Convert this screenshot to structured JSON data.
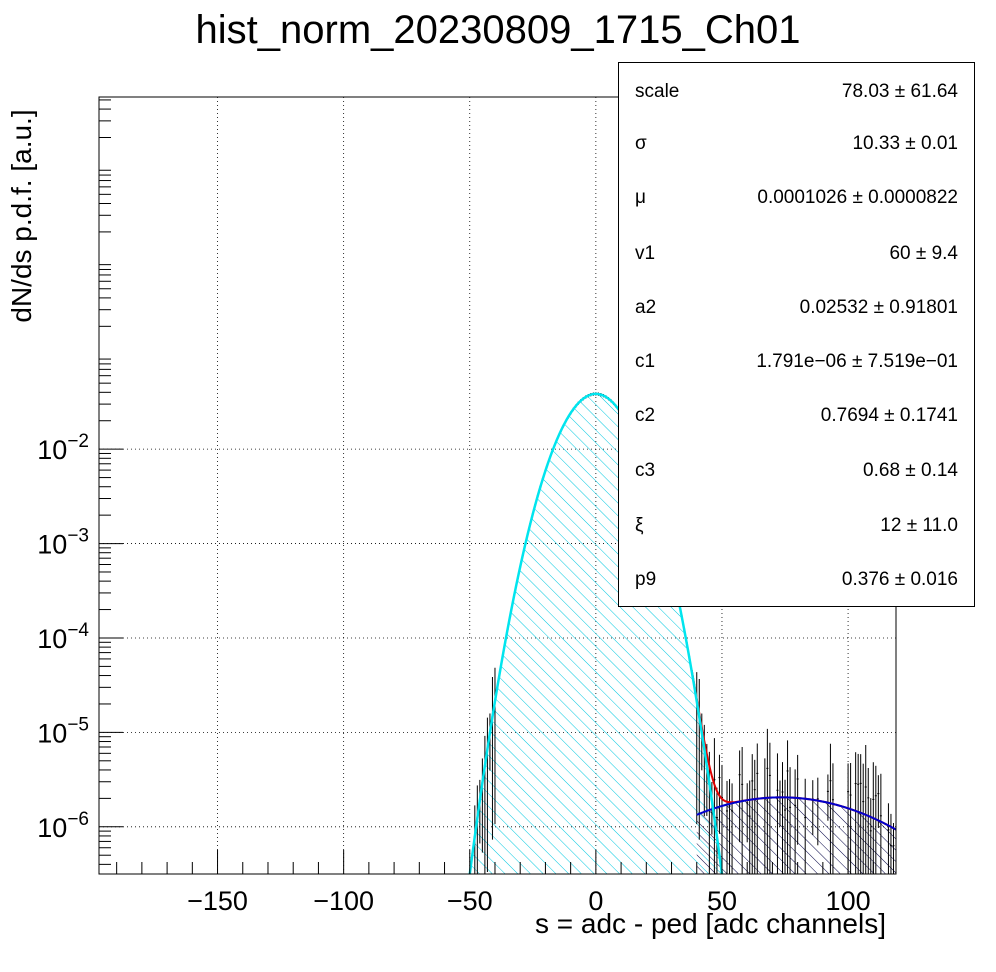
{
  "chart_data": {
    "type": "histogram-fit",
    "title": "hist_norm_20230809_1715_Ch01",
    "xlabel": "s = adc - ped [adc channels]",
    "ylabel": "dN/ds p.d.f. [a.u.]",
    "xlim": [
      -197,
      119
    ],
    "ylim_log10": [
      -6.5,
      1.73
    ],
    "y_scale": "log",
    "grid": true,
    "x_ticks": [
      {
        "value": -150,
        "label": "−150"
      },
      {
        "value": -100,
        "label": "−100"
      },
      {
        "value": -50,
        "label": "−50"
      },
      {
        "value": 0,
        "label": "0"
      },
      {
        "value": 50,
        "label": "50"
      },
      {
        "value": 100,
        "label": "100"
      }
    ],
    "y_ticks": [
      {
        "exp": -2,
        "base": "10",
        "sup": "−2"
      },
      {
        "exp": -3,
        "base": "10",
        "sup": "−3"
      },
      {
        "exp": -4,
        "base": "10",
        "sup": "−4"
      },
      {
        "exp": -5,
        "base": "10",
        "sup": "−5"
      },
      {
        "exp": -6,
        "base": "10",
        "sup": "−6"
      }
    ],
    "pedestal_peak": {
      "mean": 0.0001026,
      "sigma": 10.33,
      "peak_value": 0.0385,
      "color": "#00e5ee"
    },
    "signal_curve": {
      "center": 73.5,
      "peak_value": 2.05e-06,
      "color": "#0000cc"
    },
    "total_fit_color": "#e00000",
    "data_color": "#000000",
    "stats": [
      {
        "name": "scale",
        "value": "78.03 ± 61.64"
      },
      {
        "name": "σ",
        "value": "10.33 ± 0.01"
      },
      {
        "name": "μ",
        "value": "0.0001026 ± 0.0000822"
      },
      {
        "name": "v1",
        "value": "60 ± 9.4"
      },
      {
        "name": "a2",
        "value": "0.02532 ± 0.91801"
      },
      {
        "name": "c1",
        "value": "1.791e−06 ± 7.519e−01"
      },
      {
        "name": "c2",
        "value": "0.7694 ± 0.1741"
      },
      {
        "name": "c3",
        "value": "0.68 ± 0.14"
      },
      {
        "name": "ξ",
        "value": "12 ± 11.0"
      },
      {
        "name": "p9",
        "value": "0.376 ± 0.016"
      }
    ]
  }
}
